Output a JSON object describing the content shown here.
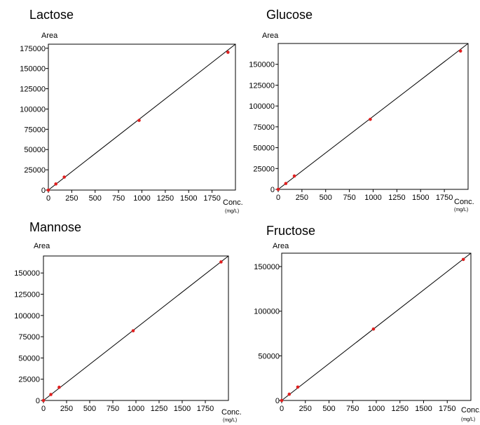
{
  "chart_data": [
    {
      "type": "scatter",
      "title": "Lactose",
      "ylabel": "Area",
      "xlabel": "Conc.",
      "xunit": "(mg/L)",
      "xlim": [
        0,
        2000
      ],
      "ylim": [
        0,
        180000
      ],
      "xticks": [
        0,
        250,
        500,
        750,
        1000,
        1250,
        1500,
        1750
      ],
      "yticks": [
        0,
        25000,
        50000,
        75000,
        100000,
        125000,
        150000,
        175000
      ],
      "grid": false,
      "fit_line": {
        "x": [
          0,
          2000
        ],
        "y": [
          0,
          180000
        ]
      },
      "points": {
        "x": [
          0,
          80,
          170,
          970,
          1920
        ],
        "y": [
          0,
          7500,
          16000,
          86000,
          170000
        ]
      }
    },
    {
      "type": "scatter",
      "title": "Glucose",
      "ylabel": "Area",
      "xlabel": "Conc.",
      "xunit": "(mg/L)",
      "xlim": [
        0,
        2000
      ],
      "ylim": [
        0,
        175000
      ],
      "xticks": [
        0,
        250,
        500,
        750,
        1000,
        1250,
        1500,
        1750
      ],
      "yticks": [
        0,
        25000,
        50000,
        75000,
        100000,
        125000,
        150000
      ],
      "grid": false,
      "fit_line": {
        "x": [
          0,
          2000
        ],
        "y": [
          0,
          175000
        ]
      },
      "points": {
        "x": [
          0,
          80,
          170,
          970,
          1920
        ],
        "y": [
          0,
          7000,
          16000,
          84000,
          166000
        ]
      }
    },
    {
      "type": "scatter",
      "title": "Mannose",
      "ylabel": "Area",
      "xlabel": "Conc.",
      "xunit": "(mg/L)",
      "xlim": [
        0,
        2000
      ],
      "ylim": [
        0,
        170000
      ],
      "xticks": [
        0,
        250,
        500,
        750,
        1000,
        1250,
        1500,
        1750
      ],
      "yticks": [
        0,
        25000,
        50000,
        75000,
        100000,
        125000,
        150000
      ],
      "grid": false,
      "fit_line": {
        "x": [
          0,
          2000
        ],
        "y": [
          0,
          170000
        ]
      },
      "points": {
        "x": [
          0,
          80,
          170,
          970,
          1920
        ],
        "y": [
          0,
          7000,
          15500,
          82000,
          163000
        ]
      }
    },
    {
      "type": "scatter",
      "title": "Fructose",
      "ylabel": "Area",
      "xlabel": "Conc.",
      "xunit": "(mg/L)",
      "xlim": [
        0,
        2000
      ],
      "ylim": [
        0,
        165000
      ],
      "xticks": [
        0,
        250,
        500,
        750,
        1000,
        1250,
        1500,
        1750
      ],
      "yticks": [
        0,
        50000,
        100000,
        150000
      ],
      "grid": false,
      "fit_line": {
        "x": [
          0,
          2000
        ],
        "y": [
          0,
          165000
        ]
      },
      "points": {
        "x": [
          0,
          80,
          170,
          970,
          1920
        ],
        "y": [
          0,
          7000,
          15000,
          80000,
          158000
        ]
      }
    }
  ],
  "colors": {
    "points": "#e02020",
    "line": "#000000",
    "axes": "#000000"
  }
}
